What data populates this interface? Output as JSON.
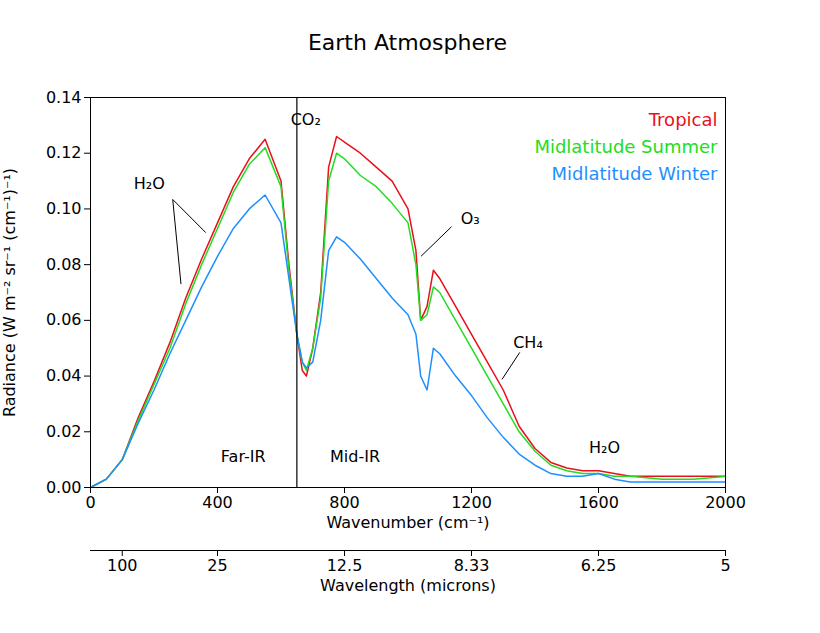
{
  "chart_data": {
    "type": "line",
    "title": "Earth Atmosphere",
    "xlabel": "Wavenumber (cm⁻¹)",
    "ylabel": "Radiance (W m⁻² sr⁻¹ (cm⁻¹)⁻¹)",
    "x2label": "Wavelength (microns)",
    "x": [
      0,
      50,
      100,
      150,
      200,
      250,
      300,
      350,
      400,
      450,
      500,
      550,
      600,
      625,
      650,
      667,
      680,
      700,
      725,
      750,
      775,
      800,
      850,
      900,
      950,
      1000,
      1025,
      1040,
      1060,
      1080,
      1100,
      1150,
      1200,
      1250,
      1300,
      1350,
      1400,
      1450,
      1500,
      1550,
      1600,
      1650,
      1700,
      1800,
      1900,
      2000
    ],
    "series": [
      {
        "name": "Tropical",
        "color": "#e8101c",
        "values": [
          0,
          0.003,
          0.01,
          0.025,
          0.038,
          0.052,
          0.068,
          0.082,
          0.095,
          0.108,
          0.118,
          0.125,
          0.11,
          0.08,
          0.055,
          0.042,
          0.04,
          0.05,
          0.07,
          0.115,
          0.126,
          0.124,
          0.12,
          0.115,
          0.11,
          0.1,
          0.085,
          0.06,
          0.065,
          0.078,
          0.075,
          0.065,
          0.055,
          0.045,
          0.035,
          0.022,
          0.014,
          0.009,
          0.007,
          0.006,
          0.006,
          0.005,
          0.004,
          0.004,
          0.004,
          0.004
        ]
      },
      {
        "name": "Midlatitude Summer",
        "color": "#22dd22",
        "values": [
          0,
          0.003,
          0.01,
          0.024,
          0.037,
          0.05,
          0.066,
          0.08,
          0.093,
          0.106,
          0.116,
          0.122,
          0.108,
          0.078,
          0.055,
          0.045,
          0.042,
          0.05,
          0.068,
          0.11,
          0.12,
          0.118,
          0.112,
          0.108,
          0.102,
          0.095,
          0.08,
          0.06,
          0.062,
          0.072,
          0.07,
          0.06,
          0.05,
          0.04,
          0.03,
          0.02,
          0.013,
          0.008,
          0.006,
          0.005,
          0.005,
          0.004,
          0.004,
          0.003,
          0.003,
          0.004
        ]
      },
      {
        "name": "Midlatitude Winter",
        "color": "#1e8fff",
        "values": [
          0,
          0.003,
          0.01,
          0.023,
          0.035,
          0.048,
          0.06,
          0.072,
          0.083,
          0.093,
          0.1,
          0.105,
          0.095,
          0.075,
          0.055,
          0.045,
          0.043,
          0.045,
          0.06,
          0.085,
          0.09,
          0.088,
          0.082,
          0.075,
          0.068,
          0.062,
          0.055,
          0.04,
          0.035,
          0.05,
          0.048,
          0.04,
          0.033,
          0.025,
          0.018,
          0.012,
          0.008,
          0.005,
          0.004,
          0.004,
          0.005,
          0.003,
          0.002,
          0.002,
          0.002,
          0.002
        ]
      }
    ],
    "xlim": [
      0,
      2000
    ],
    "xticks": [
      0,
      400,
      800,
      1200,
      1600,
      2000
    ],
    "ylim": [
      0,
      0.14
    ],
    "yticks": [
      {
        "value": 0,
        "label": "0.00"
      },
      {
        "value": 0.02,
        "label": "0.02"
      },
      {
        "value": 0.04,
        "label": "0.04"
      },
      {
        "value": 0.06,
        "label": "0.06"
      },
      {
        "value": 0.08,
        "label": "0.08"
      },
      {
        "value": 0.1,
        "label": "0.10"
      },
      {
        "value": 0.12,
        "label": "0.12"
      },
      {
        "value": 0.14,
        "label": "0.14"
      }
    ],
    "x2ticks": [
      {
        "value": 100,
        "label": "100"
      },
      {
        "value": 400,
        "label": "25"
      },
      {
        "value": 800,
        "label": "12.5"
      },
      {
        "value": 1200,
        "label": "8.33"
      },
      {
        "value": 1600,
        "label": "6.25"
      },
      {
        "value": 2000,
        "label": "5"
      }
    ],
    "vertical_line": 650,
    "annotations": [
      {
        "text": "H₂O",
        "x": 185,
        "y": 0.109,
        "lines": [
          [
            259,
            0.1034,
            363,
            0.0915
          ],
          [
            259,
            0.1034,
            285,
            0.073
          ]
        ]
      },
      {
        "text": "CO₂",
        "x": 678,
        "y": 0.132,
        "lines": []
      },
      {
        "text": "O₃",
        "x": 1196,
        "y": 0.0966,
        "lines": [
          [
            1137,
            0.0936,
            1041,
            0.083
          ]
        ]
      },
      {
        "text": "CH₄",
        "x": 1378,
        "y": 0.052,
        "lines": [
          [
            1352,
            0.0485,
            1296,
            0.0388
          ]
        ]
      },
      {
        "text": "H₂O",
        "x": 1619,
        "y": 0.0144,
        "lines": []
      },
      {
        "text": "Far-IR",
        "x": 481,
        "y": 0.011,
        "lines": []
      },
      {
        "text": "Mid-IR",
        "x": 833,
        "y": 0.011,
        "lines": []
      }
    ],
    "legend": "top-right",
    "grid": false
  }
}
